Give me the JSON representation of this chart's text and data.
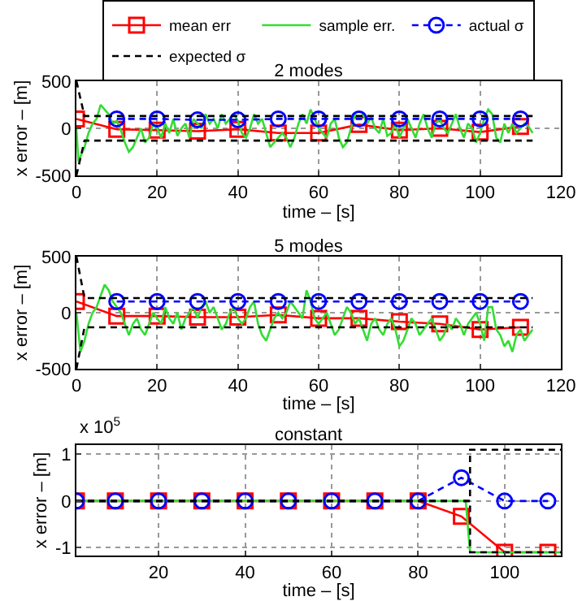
{
  "chart_data": [
    {
      "type": "line",
      "title": "2 modes",
      "xlabel": "time – [s]",
      "ylabel": "x error – [m]",
      "xlim": [
        0,
        120
      ],
      "xticks": [
        0,
        20,
        40,
        60,
        80,
        100,
        120
      ],
      "ylim": [
        -500,
        500
      ],
      "yticks": [
        -500,
        0,
        500
      ],
      "grid": true,
      "legend": "top",
      "series": [
        {
          "name": "mean err",
          "color": "#ff0000",
          "marker": "square",
          "line_style": "solid",
          "x": [
            0,
            10,
            20,
            30,
            40,
            50,
            60,
            70,
            80,
            90,
            100,
            110
          ],
          "values": [
            100,
            -10,
            -20,
            -30,
            -10,
            -50,
            -50,
            40,
            -20,
            0,
            -40,
            20
          ]
        },
        {
          "name": "sample err.",
          "color": "#33dd33",
          "marker": "none",
          "line_style": "solid",
          "x": [
            0,
            0.5,
            1,
            2,
            3,
            4,
            5,
            6,
            7,
            8,
            9,
            10,
            11,
            12,
            13,
            14,
            15,
            16,
            17,
            18,
            19,
            20,
            21,
            22,
            23,
            24,
            25,
            26,
            27,
            28,
            29,
            30,
            31,
            32,
            33,
            34,
            35,
            36,
            37,
            38,
            39,
            40,
            41,
            42,
            43,
            44,
            45,
            46,
            47,
            48,
            49,
            50,
            51,
            52,
            53,
            54,
            55,
            56,
            57,
            58,
            59,
            60,
            61,
            62,
            63,
            64,
            65,
            66,
            67,
            68,
            69,
            70,
            71,
            72,
            73,
            74,
            75,
            76,
            77,
            78,
            79,
            80,
            81,
            82,
            83,
            84,
            85,
            86,
            87,
            88,
            89,
            90,
            91,
            92,
            93,
            94,
            95,
            96,
            97,
            98,
            99,
            100,
            101,
            102,
            103,
            104,
            105,
            106,
            107,
            108,
            109,
            110,
            111,
            112,
            113
          ],
          "values": [
            0,
            -350,
            -300,
            -200,
            -50,
            50,
            100,
            250,
            200,
            150,
            50,
            80,
            -20,
            -150,
            -250,
            -200,
            -100,
            0,
            -150,
            -100,
            50,
            0,
            -100,
            50,
            -50,
            100,
            -80,
            0,
            50,
            -100,
            100,
            50,
            0,
            150,
            50,
            100,
            0,
            150,
            50,
            100,
            150,
            80,
            -50,
            -100,
            0,
            150,
            50,
            100,
            -50,
            -200,
            -150,
            -100,
            -50,
            -100,
            -200,
            -100,
            50,
            150,
            50,
            200,
            100,
            0,
            -50,
            -100,
            50,
            100,
            -100,
            -200,
            -150,
            0,
            150,
            100,
            150,
            50,
            120,
            0,
            -50,
            100,
            -80,
            -50,
            50,
            -100,
            0,
            100,
            0,
            -100,
            50,
            150,
            0,
            -100,
            50,
            100,
            0,
            -50,
            50,
            150,
            0,
            -100,
            50,
            0,
            -150,
            -50,
            100,
            200,
            150,
            -100,
            -150,
            50,
            -50,
            50,
            -50,
            0,
            50,
            20,
            -50
          ]
        },
        {
          "name": "actual σ",
          "color": "#0000ff",
          "marker": "circle",
          "line_style": "dashed",
          "x": [
            10,
            20,
            30,
            40,
            50,
            60,
            70,
            80,
            90,
            100,
            110
          ],
          "values": [
            100,
            100,
            90,
            90,
            100,
            100,
            100,
            100,
            100,
            100,
            100
          ]
        },
        {
          "name": "expected σ",
          "color": "#000000",
          "marker": "none",
          "line_style": "dashed",
          "x": [
            0,
            2,
            113
          ],
          "values": [
            500,
            130,
            130
          ]
        },
        {
          "color": "#000000",
          "marker": "none",
          "line_style": "dashed",
          "x": [
            0,
            2,
            113
          ],
          "values": [
            -500,
            -130,
            -130
          ]
        }
      ]
    },
    {
      "type": "line",
      "title": "5 modes",
      "xlabel": "time – [s]",
      "ylabel": "x error – [m]",
      "xlim": [
        0,
        120
      ],
      "xticks": [
        0,
        20,
        40,
        60,
        80,
        100,
        120
      ],
      "ylim": [
        -500,
        500
      ],
      "yticks": [
        -500,
        0,
        500
      ],
      "grid": true,
      "series": [
        {
          "color": "#ff0000",
          "marker": "square",
          "line_style": "solid",
          "x": [
            0,
            10,
            20,
            30,
            40,
            50,
            60,
            70,
            80,
            90,
            100,
            110
          ],
          "values": [
            100,
            -30,
            -30,
            -40,
            -40,
            -20,
            -50,
            -50,
            -80,
            -100,
            -150,
            -130
          ]
        },
        {
          "color": "#33dd33",
          "marker": "none",
          "line_style": "solid",
          "x": [
            0,
            1,
            2,
            3,
            4,
            5,
            6,
            7,
            8,
            9,
            10,
            11,
            12,
            13,
            14,
            15,
            16,
            17,
            18,
            19,
            20,
            21,
            22,
            23,
            24,
            25,
            26,
            27,
            28,
            29,
            30,
            31,
            32,
            33,
            34,
            35,
            36,
            37,
            38,
            39,
            40,
            41,
            42,
            43,
            44,
            45,
            46,
            47,
            48,
            49,
            50,
            51,
            52,
            53,
            54,
            55,
            56,
            57,
            58,
            59,
            60,
            61,
            62,
            63,
            64,
            65,
            66,
            67,
            68,
            69,
            70,
            71,
            72,
            73,
            74,
            75,
            76,
            77,
            78,
            79,
            80,
            81,
            82,
            83,
            84,
            85,
            86,
            87,
            88,
            89,
            90,
            91,
            92,
            93,
            94,
            95,
            96,
            97,
            98,
            99,
            100,
            101,
            102,
            103,
            104,
            105,
            106,
            107,
            108,
            109,
            110,
            111,
            112,
            113
          ],
          "values": [
            0,
            -350,
            -250,
            -100,
            0,
            50,
            150,
            250,
            200,
            100,
            50,
            0,
            -100,
            -200,
            -100,
            -50,
            -150,
            -200,
            -100,
            0,
            -50,
            -100,
            50,
            -50,
            -100,
            0,
            -150,
            -50,
            0,
            50,
            -50,
            50,
            100,
            0,
            50,
            -50,
            -150,
            -100,
            0,
            50,
            -50,
            -100,
            -50,
            50,
            100,
            -100,
            -200,
            -250,
            -150,
            -50,
            0,
            -50,
            0,
            100,
            50,
            0,
            -50,
            200,
            100,
            -50,
            -100,
            -50,
            0,
            -100,
            -200,
            -150,
            -50,
            50,
            0,
            -100,
            -50,
            -150,
            -250,
            -100,
            -50,
            -150,
            -200,
            -100,
            -50,
            -150,
            -300,
            -250,
            -150,
            -50,
            -100,
            -200,
            -150,
            -100,
            -50,
            -150,
            -250,
            -200,
            -100,
            -150,
            -50,
            -100,
            -200,
            -100,
            -50,
            0,
            -100,
            -250,
            50,
            50,
            -150,
            -200,
            -300,
            -250,
            -350,
            -200,
            -150,
            -250,
            -200,
            -150
          ]
        },
        {
          "color": "#0000ff",
          "marker": "circle",
          "line_style": "dashed",
          "x": [
            10,
            20,
            30,
            40,
            50,
            60,
            70,
            80,
            90,
            100,
            110
          ],
          "values": [
            100,
            100,
            100,
            100,
            100,
            100,
            100,
            100,
            100,
            100,
            100
          ]
        },
        {
          "color": "#000000",
          "marker": "none",
          "line_style": "dashed",
          "x": [
            0,
            2,
            113
          ],
          "values": [
            500,
            130,
            130
          ]
        },
        {
          "color": "#000000",
          "marker": "none",
          "line_style": "dashed",
          "x": [
            0,
            2,
            113
          ],
          "values": [
            -500,
            -130,
            -130
          ]
        }
      ]
    },
    {
      "type": "line",
      "title": "constant",
      "xlabel": "time – [s]",
      "ylabel": "x error – [m]",
      "annotations": [
        "x 10$^{5}$"
      ],
      "xlim": [
        1,
        113
      ],
      "xticks": [
        20,
        40,
        60,
        80,
        100
      ],
      "ylim": [
        -1.17,
        1.2
      ],
      "yticks": [
        -1,
        0,
        1
      ],
      "grid": true,
      "series": [
        {
          "color": "#ff0000",
          "marker": "square",
          "line_style": "solid",
          "x": [
            1,
            10,
            20,
            30,
            40,
            50,
            60,
            70,
            80,
            90,
            100,
            110
          ],
          "values": [
            0,
            0,
            0,
            0,
            0,
            0,
            0,
            0,
            0,
            -0.33,
            -1.1,
            -1.1
          ]
        },
        {
          "color": "#33dd33",
          "marker": "none",
          "line_style": "solid",
          "x": [
            1,
            91,
            92,
            113
          ],
          "values": [
            0,
            0,
            -1.1,
            -1.1
          ]
        },
        {
          "color": "#0000ff",
          "marker": "circle",
          "line_style": "dashed",
          "x": [
            1,
            10,
            20,
            30,
            40,
            50,
            60,
            70,
            80,
            90,
            100,
            110
          ],
          "values": [
            0,
            0,
            0,
            0,
            0,
            0,
            0,
            0,
            0,
            0.5,
            0,
            0
          ]
        },
        {
          "color": "#000000",
          "marker": "none",
          "line_style": "dashed",
          "x": [
            1,
            92,
            92,
            113
          ],
          "values": [
            0,
            0,
            1.1,
            1.1
          ]
        },
        {
          "color": "#000000",
          "marker": "none",
          "line_style": "dashed",
          "x": [
            1,
            92,
            92,
            113
          ],
          "values": [
            0,
            0,
            -1.1,
            -1.1
          ]
        }
      ]
    }
  ]
}
